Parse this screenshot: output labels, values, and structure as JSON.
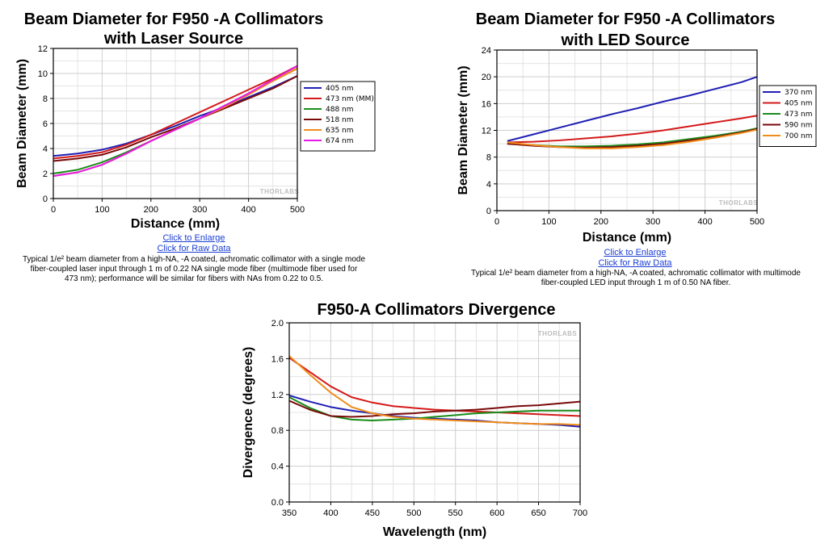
{
  "chart_data": [
    {
      "type": "line",
      "title": "Beam Diameter for F950 -A Collimators with Laser Source",
      "title_lines": [
        "Beam Diameter for F950 -A Collimators",
        "with Laser Source"
      ],
      "xlabel": "Distance (mm)",
      "ylabel": "Beam Diameter (mm)",
      "xlim": [
        0,
        500
      ],
      "ylim": [
        0,
        12
      ],
      "xticks": [
        0,
        100,
        200,
        300,
        400,
        500
      ],
      "yticks": [
        0,
        2,
        4,
        6,
        8,
        10,
        12
      ],
      "grid": true,
      "legend_position": "right",
      "watermark": "THORLABS",
      "x": [
        0,
        50,
        100,
        150,
        200,
        250,
        300,
        350,
        400,
        450,
        500
      ],
      "series": [
        {
          "name": "405 nm",
          "color": "#1f1fb4",
          "values": [
            3.4,
            3.6,
            3.9,
            4.4,
            5.1,
            5.8,
            6.6,
            7.3,
            8.1,
            8.9,
            9.8
          ]
        },
        {
          "name": "473 nm (MM)",
          "color": "#d41a1a",
          "values": [
            3.2,
            3.4,
            3.7,
            4.3,
            5.1,
            6.0,
            6.9,
            7.8,
            8.7,
            9.6,
            10.6
          ]
        },
        {
          "name": "488 nm",
          "color": "#1a8c1a",
          "values": [
            2.0,
            2.3,
            2.9,
            3.7,
            4.6,
            5.5,
            6.4,
            7.4,
            8.4,
            9.4,
            10.4
          ]
        },
        {
          "name": "518 nm",
          "color": "#7a0a0a",
          "values": [
            3.0,
            3.2,
            3.5,
            4.1,
            4.9,
            5.6,
            6.4,
            7.2,
            8.0,
            8.8,
            9.8
          ]
        },
        {
          "name": "635 nm",
          "color": "#f08c1a",
          "values": [
            1.8,
            2.1,
            2.7,
            3.6,
            4.6,
            5.5,
            6.4,
            7.3,
            8.3,
            9.4,
            10.4
          ]
        },
        {
          "name": "674 nm",
          "color": "#e619e6",
          "values": [
            1.8,
            2.1,
            2.7,
            3.6,
            4.6,
            5.5,
            6.4,
            7.4,
            8.4,
            9.5,
            10.6
          ]
        }
      ]
    },
    {
      "type": "line",
      "title": "Beam Diameter for F950 -A Collimators with LED Source",
      "title_lines": [
        "Beam Diameter for F950 -A Collimators",
        "with LED Source"
      ],
      "xlabel": "Distance (mm)",
      "ylabel": "Beam Diameter (mm)",
      "xlim": [
        0,
        500
      ],
      "ylim": [
        0,
        24
      ],
      "xticks": [
        0,
        100,
        200,
        300,
        400,
        500
      ],
      "yticks": [
        0,
        4,
        8,
        12,
        16,
        20,
        24
      ],
      "grid": true,
      "legend_position": "right",
      "watermark": "THORLABS",
      "x": [
        20,
        70,
        120,
        170,
        220,
        270,
        320,
        370,
        420,
        470,
        500
      ],
      "series": [
        {
          "name": "370 nm",
          "color": "#1f1fb4",
          "values": [
            10.4,
            11.4,
            12.4,
            13.4,
            14.4,
            15.3,
            16.3,
            17.2,
            18.2,
            19.2,
            20.0
          ]
        },
        {
          "name": "405 nm",
          "color": "#d41a1a",
          "values": [
            10.2,
            10.3,
            10.5,
            10.8,
            11.1,
            11.5,
            12.0,
            12.6,
            13.2,
            13.8,
            14.2
          ]
        },
        {
          "name": "473 nm",
          "color": "#1a8c1a",
          "values": [
            10.0,
            9.8,
            9.6,
            9.6,
            9.7,
            9.9,
            10.2,
            10.7,
            11.2,
            11.8,
            12.3
          ]
        },
        {
          "name": "590 nm",
          "color": "#7a0a0a",
          "values": [
            10.0,
            9.7,
            9.5,
            9.4,
            9.5,
            9.7,
            10.0,
            10.5,
            11.0,
            11.7,
            12.2
          ]
        },
        {
          "name": "700 nm",
          "color": "#f08c1a",
          "values": [
            10.2,
            9.8,
            9.5,
            9.3,
            9.3,
            9.5,
            9.8,
            10.3,
            10.9,
            11.6,
            12.1
          ]
        }
      ]
    },
    {
      "type": "line",
      "title": "F950-A Collimators Divergence",
      "title_lines": [
        "F950-A Collimators Divergence"
      ],
      "xlabel": "Wavelength (nm)",
      "ylabel": "Divergence (degrees)",
      "xlim": [
        350,
        700
      ],
      "ylim": [
        0,
        2.0
      ],
      "xticks": [
        350,
        400,
        450,
        500,
        550,
        600,
        650,
        700
      ],
      "yticks": [
        0.0,
        0.4,
        0.8,
        1.2,
        1.6,
        2.0
      ],
      "ytick_labels": [
        "0.0",
        "0.4",
        "0.8",
        "1.2",
        "1.6",
        "2.0"
      ],
      "grid": true,
      "legend_position": "none",
      "watermark": "THORLABS",
      "x": [
        350,
        375,
        400,
        425,
        450,
        475,
        500,
        525,
        550,
        575,
        600,
        625,
        650,
        675,
        700
      ],
      "series": [
        {
          "color": "#1f1fb4",
          "values": [
            1.19,
            1.12,
            1.06,
            1.02,
            0.99,
            0.96,
            0.94,
            0.93,
            0.92,
            0.91,
            0.89,
            0.88,
            0.87,
            0.86,
            0.84
          ]
        },
        {
          "color": "#d41a1a",
          "values": [
            1.61,
            1.45,
            1.29,
            1.17,
            1.11,
            1.07,
            1.05,
            1.03,
            1.02,
            1.01,
            1.0,
            0.99,
            0.98,
            0.97,
            0.96
          ]
        },
        {
          "color": "#1a8c1a",
          "values": [
            1.17,
            1.05,
            0.96,
            0.92,
            0.91,
            0.92,
            0.93,
            0.95,
            0.97,
            0.99,
            1.0,
            1.01,
            1.02,
            1.02,
            1.02
          ]
        },
        {
          "color": "#7a0a0a",
          "values": [
            1.13,
            1.03,
            0.96,
            0.95,
            0.96,
            0.98,
            0.99,
            1.01,
            1.02,
            1.03,
            1.05,
            1.07,
            1.08,
            1.1,
            1.12
          ]
        },
        {
          "color": "#f08c1a",
          "values": [
            1.63,
            1.42,
            1.22,
            1.06,
            0.99,
            0.95,
            0.93,
            0.92,
            0.91,
            0.9,
            0.89,
            0.88,
            0.87,
            0.87,
            0.86
          ]
        }
      ]
    }
  ],
  "panels": {
    "laser": {
      "link_enlarge": "Click to Enlarge",
      "link_raw": "Click for Raw Data",
      "caption_lines": [
        "Typical 1/e² beam diameter from a high-NA, -A coated, achromatic collimator with a single mode",
        "fiber-coupled laser input through 1 m of 0.22 NA single mode fiber (multimode fiber used for",
        "473 nm); performance will be similar for fibers with NAs from 0.22 to 0.5."
      ]
    },
    "led": {
      "link_enlarge": "Click to Enlarge",
      "link_raw": "Click for Raw Data",
      "caption_lines": [
        "Typical 1/e² beam diameter from a high-NA, -A coated, achromatic collimator with multimode",
        "fiber-coupled LED input through 1 m of 0.50 NA fiber."
      ]
    }
  }
}
